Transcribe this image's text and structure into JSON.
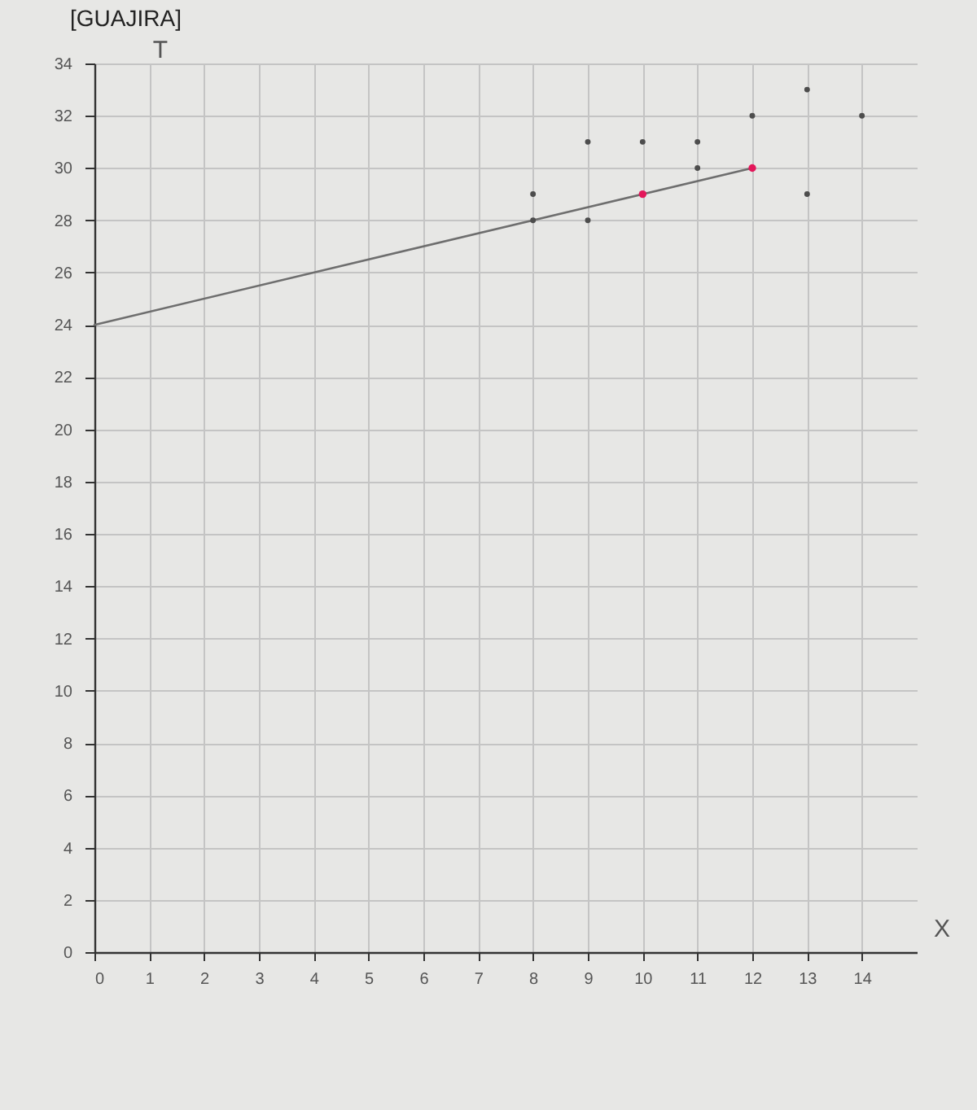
{
  "chart_data": {
    "type": "scatter",
    "title": "[GUAJIRA]",
    "xlabel": "X",
    "ylabel": "T",
    "xlim": [
      0,
      15
    ],
    "ylim": [
      0,
      34
    ],
    "xticks": [
      0,
      1,
      2,
      3,
      4,
      5,
      6,
      7,
      8,
      9,
      10,
      11,
      12,
      13,
      14
    ],
    "yticks": [
      0,
      2,
      4,
      6,
      8,
      10,
      12,
      14,
      16,
      18,
      20,
      22,
      24,
      26,
      28,
      30,
      32,
      34
    ],
    "grid": true,
    "series": [
      {
        "type": "line",
        "x": [
          0,
          12
        ],
        "values": [
          24,
          30
        ],
        "color": "#6e6e6e",
        "line_style": "solid"
      },
      {
        "x": [
          8,
          8,
          9,
          9,
          10,
          11,
          11,
          12,
          13,
          13,
          14
        ],
        "values": [
          29,
          28,
          31,
          28,
          31,
          31,
          30,
          32,
          33,
          29,
          32
        ],
        "color": "#4d4d4d",
        "marker": "circle"
      },
      {
        "x": [
          10,
          12
        ],
        "values": [
          29,
          30
        ],
        "color": "#e3175a",
        "marker": "circle"
      }
    ]
  }
}
